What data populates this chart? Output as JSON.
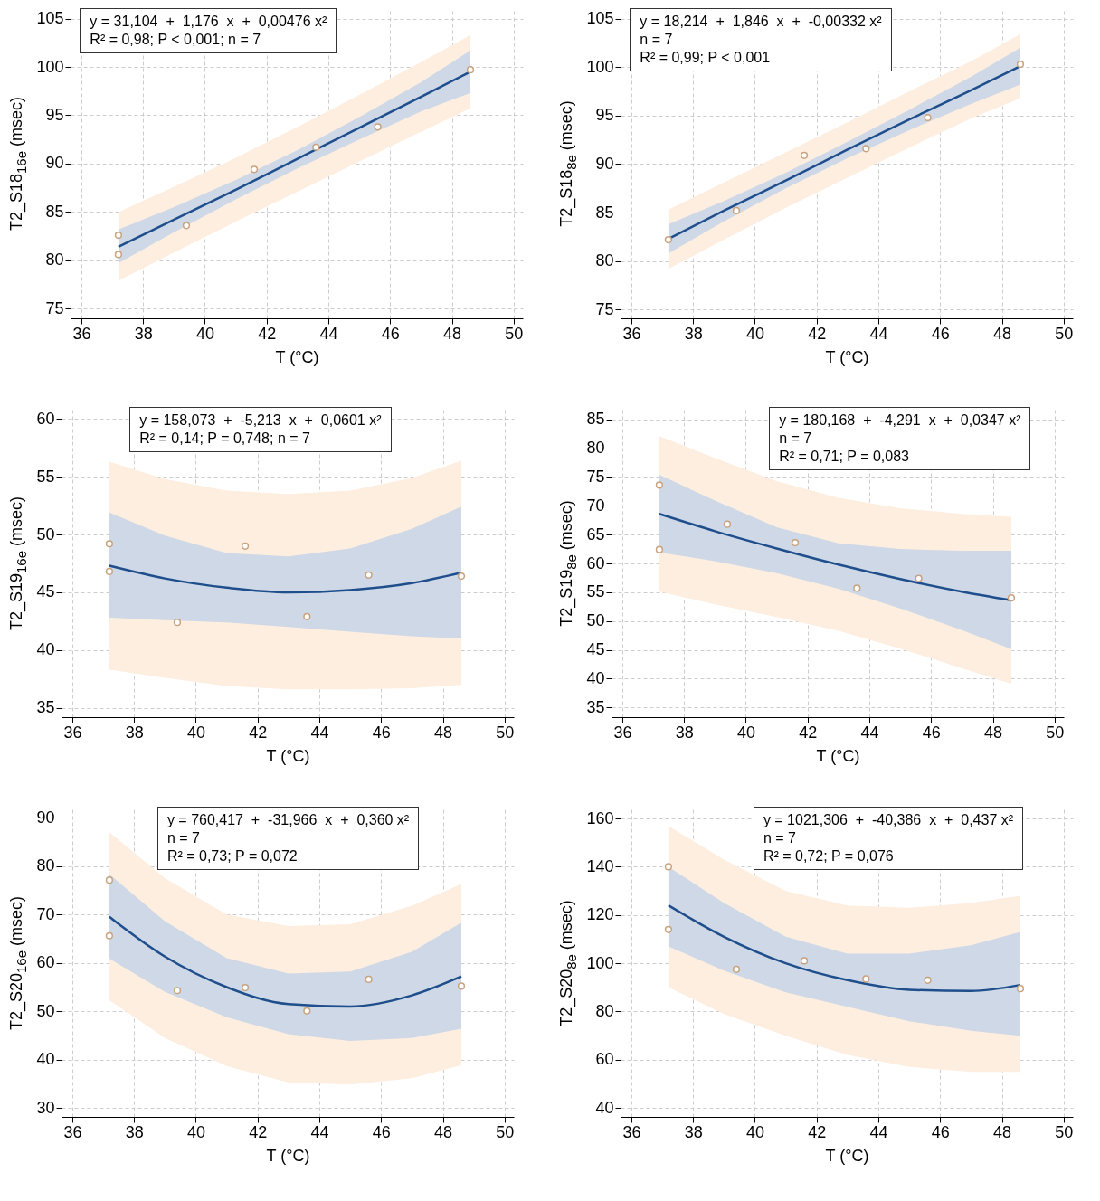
{
  "chart_data": [
    {
      "type": "scatter",
      "xlabel": "T (°C)",
      "ylabel": "T2_S18$_{16e}$ (msec)",
      "xlim": [
        35.65,
        50.3
      ],
      "ylim": [
        74,
        105.8
      ],
      "xticks": [
        36,
        38,
        40,
        42,
        44,
        46,
        48,
        50
      ],
      "yticks": [
        75,
        80,
        85,
        90,
        95,
        100,
        105
      ],
      "grid": true,
      "annotations": [
        "y = 31,104  +  1,176  x  +  0,00476 x²",
        "R² = 0,98; P < 0,001; n = 7"
      ],
      "series": [
        {
          "type": "line",
          "color": "#fdeee0",
          "x": [
            37.2,
            39,
            41,
            43,
            45,
            47,
            48.6
          ],
          "values": [
            null,
            null,
            null,
            null,
            null,
            null,
            null
          ],
          "lower": [
            77.9,
            80.8,
            84.0,
            87.1,
            90.2,
            93.3,
            95.7
          ],
          "upper": [
            85.0,
            87.6,
            90.6,
            93.8,
            97.1,
            100.5,
            103.3
          ]
        },
        {
          "type": "line",
          "color": "#1f4e8c",
          "x": [
            37.2,
            39,
            41,
            43,
            45,
            47,
            48.6
          ],
          "values": [
            81.4,
            84.2,
            87.3,
            90.5,
            93.7,
            96.9,
            99.5
          ],
          "lower": [
            79.7,
            82.9,
            86.3,
            89.5,
            92.5,
            95.4,
            97.3
          ],
          "upper": [
            83.2,
            85.5,
            88.3,
            91.4,
            94.8,
            98.4,
            101.7
          ]
        },
        {
          "type": "scatter",
          "color": "#ffffff",
          "marker": "circle",
          "x": [
            37.2,
            37.2,
            39.4,
            41.6,
            43.6,
            45.6,
            48.6
          ],
          "values": [
            82.6,
            80.6,
            83.6,
            89.4,
            91.7,
            93.8,
            99.7
          ]
        }
      ]
    },
    {
      "type": "scatter",
      "xlabel": "T (°C)",
      "ylabel": "T2_S18$_{8e}$ (msec)",
      "xlim": [
        35.65,
        50.3
      ],
      "ylim": [
        74.1,
        105.8
      ],
      "xticks": [
        36,
        38,
        40,
        42,
        44,
        46,
        48,
        50
      ],
      "yticks": [
        75,
        80,
        85,
        90,
        95,
        100,
        105
      ],
      "grid": true,
      "annotations": [
        "y = 18,214  +  1,846  x  +  -0,00332 x²",
        "n = 7",
        "R² = 0,99; P < 0,001"
      ],
      "series": [
        {
          "type": "line",
          "color": "#fdeee0",
          "x": [
            37.2,
            39,
            41,
            43,
            45,
            47,
            48.6
          ],
          "values": [
            null,
            null,
            null,
            null,
            null,
            null,
            null
          ],
          "lower": [
            79.2,
            82.2,
            85.5,
            88.6,
            91.7,
            94.7,
            96.8
          ],
          "upper": [
            85.3,
            88.1,
            91.2,
            94.3,
            97.5,
            100.6,
            103.4
          ]
        },
        {
          "type": "line",
          "color": "#1f4e8c",
          "x": [
            37.2,
            39,
            41,
            43,
            45,
            47,
            48.6
          ],
          "values": [
            82.3,
            85.2,
            88.3,
            91.5,
            94.6,
            97.6,
            100.1
          ],
          "lower": [
            80.8,
            84.1,
            87.5,
            90.6,
            93.5,
            96.2,
            98.2
          ],
          "upper": [
            83.8,
            86.2,
            89.1,
            92.3,
            95.6,
            99.0,
            102.0
          ]
        },
        {
          "type": "scatter",
          "color": "#ffffff",
          "marker": "circle",
          "x": [
            37.2,
            39.4,
            41.6,
            43.6,
            45.6,
            48.6
          ],
          "values": [
            82.2,
            85.2,
            90.9,
            91.6,
            94.8,
            100.3
          ]
        }
      ]
    },
    {
      "type": "scatter",
      "xlabel": "T (°C)",
      "ylabel": "T2_S19$_{16e}$ (msec)",
      "xlim": [
        35.65,
        50.3
      ],
      "ylim": [
        34.2,
        60.8
      ],
      "xticks": [
        36,
        38,
        40,
        42,
        44,
        46,
        48,
        50
      ],
      "yticks": [
        35,
        40,
        45,
        50,
        55,
        60
      ],
      "grid": true,
      "annotations": [
        "y = 158,073  +  -5,213  x  +  0,0601 x²",
        "R² = 0,14; P = 0,748; n = 7"
      ],
      "series": [
        {
          "type": "line",
          "color": "#fdeee0",
          "x": [
            37.2,
            39,
            41,
            43,
            45,
            47,
            48.6
          ],
          "values": [
            null,
            null,
            null,
            null,
            null,
            null,
            null
          ],
          "lower": [
            38.3,
            37.6,
            36.9,
            36.6,
            36.6,
            36.7,
            37.0
          ],
          "upper": [
            56.3,
            54.8,
            53.8,
            53.5,
            53.8,
            54.9,
            56.4
          ]
        },
        {
          "type": "line",
          "color": "#1f4e8c",
          "x": [
            37.2,
            39,
            41,
            43,
            45,
            47,
            48.6
          ],
          "values": [
            47.3,
            46.2,
            45.4,
            45.0,
            45.2,
            45.8,
            46.7
          ],
          "lower": [
            42.8,
            42.6,
            42.4,
            42.0,
            41.6,
            41.2,
            41.0
          ],
          "upper": [
            51.9,
            49.9,
            48.4,
            48.1,
            48.8,
            50.5,
            52.4
          ]
        },
        {
          "type": "scatter",
          "color": "#ffffff",
          "marker": "circle",
          "x": [
            37.2,
            37.2,
            39.4,
            41.6,
            43.6,
            45.6,
            48.6
          ],
          "values": [
            49.2,
            46.8,
            42.4,
            49.0,
            42.9,
            46.5,
            46.4
          ]
        }
      ]
    },
    {
      "type": "scatter",
      "xlabel": "T (°C)",
      "ylabel": "T2_S19$_{8e}$ (msec)",
      "xlim": [
        35.65,
        50.3
      ],
      "ylim": [
        33.3,
        86.7
      ],
      "xticks": [
        36,
        38,
        40,
        42,
        44,
        46,
        48,
        50
      ],
      "yticks": [
        35,
        40,
        45,
        50,
        55,
        60,
        65,
        70,
        75,
        80,
        85
      ],
      "grid": true,
      "annotations": [
        "y = 180,168  +  -4,291  x  +  0,0347 x²",
        "n = 7",
        "R² = 0,71; P = 0,083"
      ],
      "series": [
        {
          "type": "line",
          "color": "#fdeee0",
          "x": [
            37.2,
            39,
            41,
            43,
            45,
            47,
            48.6
          ],
          "values": [
            null,
            null,
            null,
            null,
            null,
            null,
            null
          ],
          "lower": [
            55.1,
            52.9,
            50.7,
            48.3,
            45.2,
            41.8,
            39.1
          ],
          "upper": [
            82.1,
            78.3,
            74.3,
            71.4,
            69.6,
            68.6,
            68.1
          ]
        },
        {
          "type": "line",
          "color": "#1f4e8c",
          "x": [
            37.2,
            39,
            41,
            43,
            45,
            47,
            48.6
          ],
          "values": [
            68.6,
            65.6,
            62.6,
            59.8,
            57.3,
            55.1,
            53.6
          ],
          "lower": [
            61.9,
            60.4,
            58.3,
            55.6,
            52.2,
            48.4,
            45.1
          ],
          "upper": [
            75.4,
            70.9,
            66.3,
            63.5,
            62.5,
            62.2,
            62.2
          ]
        },
        {
          "type": "scatter",
          "color": "#ffffff",
          "marker": "circle",
          "x": [
            37.2,
            37.2,
            39.4,
            41.6,
            43.6,
            45.6,
            48.6
          ],
          "values": [
            73.6,
            62.4,
            66.8,
            63.6,
            55.7,
            57.4,
            54.0
          ]
        }
      ]
    },
    {
      "type": "scatter",
      "xlabel": "T (°C)",
      "ylabel": "T2_S20$_{16e}$ (msec)",
      "xlim": [
        35.65,
        50.3
      ],
      "ylim": [
        28.2,
        91.7
      ],
      "xticks": [
        36,
        38,
        40,
        42,
        44,
        46,
        48,
        50
      ],
      "yticks": [
        30,
        40,
        50,
        60,
        70,
        80,
        90
      ],
      "grid": true,
      "annotations": [
        "y = 760,417  +  -31,966  x  +  0,360 x²",
        "n = 7",
        "R² = 0,73; P = 0,072"
      ],
      "series": [
        {
          "type": "line",
          "color": "#fdeee0",
          "x": [
            37.2,
            39,
            41,
            43,
            45,
            47,
            48.6
          ],
          "values": [
            null,
            null,
            null,
            null,
            null,
            null,
            null
          ],
          "lower": [
            52.3,
            44.5,
            38.7,
            35.3,
            34.9,
            36.2,
            38.9
          ],
          "upper": [
            87.0,
            77.5,
            70.0,
            67.6,
            68.0,
            71.8,
            76.3
          ]
        },
        {
          "type": "line",
          "color": "#1f4e8c",
          "x": [
            37.2,
            39,
            41,
            43,
            45,
            47,
            48.6
          ],
          "values": [
            69.5,
            61.3,
            55.0,
            51.5,
            51.0,
            53.3,
            57.2
          ],
          "lower": [
            60.9,
            54.0,
            48.8,
            45.3,
            43.9,
            44.5,
            46.4
          ],
          "upper": [
            78.3,
            68.6,
            61.0,
            57.8,
            58.2,
            62.3,
            68.3
          ]
        },
        {
          "type": "scatter",
          "color": "#ffffff",
          "marker": "circle",
          "x": [
            37.2,
            37.2,
            39.4,
            41.6,
            43.6,
            45.6,
            48.6
          ],
          "values": [
            77.1,
            65.6,
            54.3,
            54.9,
            50.1,
            56.6,
            55.2
          ]
        }
      ]
    },
    {
      "type": "scatter",
      "xlabel": "T (°C)",
      "ylabel": "T2_S20$_{8e}$ (msec)",
      "xlim": [
        35.65,
        50.3
      ],
      "ylim": [
        36.3,
        163.8
      ],
      "xticks": [
        36,
        38,
        40,
        42,
        44,
        46,
        48,
        50
      ],
      "yticks": [
        40,
        60,
        80,
        100,
        120,
        140,
        160
      ],
      "grid": true,
      "annotations": [
        "y = 1021,306  +  -40,386  x  +  0,437 x²",
        "n = 7",
        "R² = 0,72; P = 0,076"
      ],
      "series": [
        {
          "type": "line",
          "color": "#fdeee0",
          "x": [
            37.2,
            39,
            41,
            43,
            45,
            47,
            48.6
          ],
          "values": [
            null,
            null,
            null,
            null,
            null,
            null,
            null
          ],
          "lower": [
            90,
            79,
            70,
            62,
            57,
            55,
            55
          ],
          "upper": [
            157,
            143,
            130,
            124,
            123,
            125,
            128
          ]
        },
        {
          "type": "line",
          "color": "#1f4e8c",
          "x": [
            37.2,
            39,
            41,
            43,
            45,
            47,
            48.6
          ],
          "values": [
            124,
            111,
            100,
            93,
            89,
            88.5,
            91
          ],
          "lower": [
            107,
            97,
            88,
            82,
            76,
            72,
            70
          ],
          "upper": [
            140,
            125,
            111,
            104,
            104,
            107.5,
            113
          ]
        },
        {
          "type": "scatter",
          "color": "#ffffff",
          "marker": "circle",
          "x": [
            37.2,
            37.2,
            39.4,
            41.6,
            43.6,
            45.6,
            48.6
          ],
          "values": [
            140,
            114,
            97.5,
            101,
            93.5,
            93,
            89.5
          ]
        }
      ]
    }
  ]
}
